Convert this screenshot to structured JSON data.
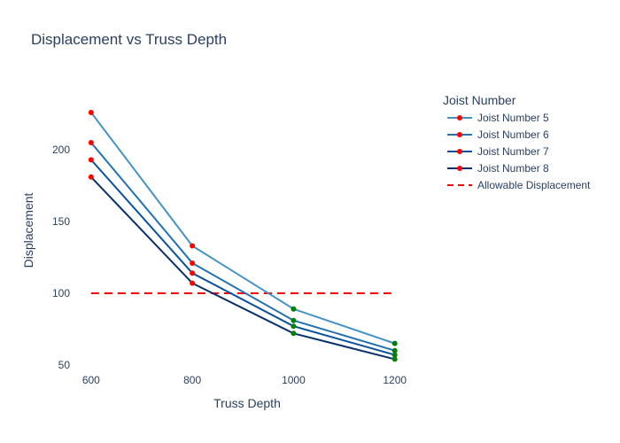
{
  "chart_data": {
    "type": "line",
    "title": "Displacement vs Truss Depth",
    "xlabel": "Truss Depth",
    "ylabel": "Displacement",
    "x": [
      600,
      800,
      1000,
      1200
    ],
    "xticks": [
      600,
      800,
      1000,
      1200
    ],
    "yticks": [
      50,
      100,
      150,
      200
    ],
    "xlim": [
      560,
      1260
    ],
    "ylim": [
      45,
      255
    ],
    "grid": false,
    "legend_title": "Joist Number",
    "legend_position": "right",
    "series": [
      {
        "name": "Joist Number 5",
        "values": [
          226,
          133,
          89,
          65
        ],
        "color": "#4292c6"
      },
      {
        "name": "Joist Number 6",
        "values": [
          205,
          121,
          81,
          60
        ],
        "color": "#2171b5"
      },
      {
        "name": "Joist Number 7",
        "values": [
          193,
          114,
          77,
          57
        ],
        "color": "#08519c"
      },
      {
        "name": "Joist Number 8",
        "values": [
          181,
          107,
          72,
          54
        ],
        "color": "#08306b"
      }
    ],
    "reference_line": {
      "name": "Allowable Displacement",
      "y": 100,
      "x_range": [
        600,
        1200
      ],
      "color": "#ff0000",
      "style": "dashed"
    },
    "marker_colors": {
      "above_limit": "#ff0000",
      "below_limit": "#008000"
    }
  }
}
